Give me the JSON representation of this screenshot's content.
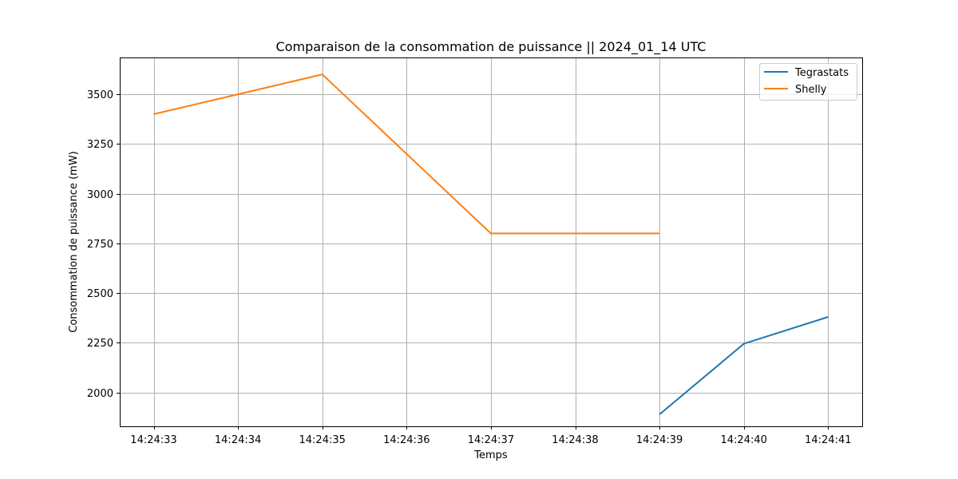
{
  "chart_data": {
    "type": "line",
    "title": "Comparaison de la consommation de puissance  ||  2024_01_14 UTC",
    "xlabel": "Temps",
    "ylabel": "Consommation de puissance (mW)",
    "categories": [
      "14:24:33",
      "14:24:34",
      "14:24:35",
      "14:24:36",
      "14:24:37",
      "14:24:38",
      "14:24:39",
      "14:24:40",
      "14:24:41"
    ],
    "yticks": [
      2000,
      2250,
      2500,
      2750,
      3000,
      3250,
      3500
    ],
    "ylim": [
      1830,
      3685
    ],
    "grid": true,
    "legend_position": "top-right",
    "series": [
      {
        "name": "Tegrastats",
        "color": "#1f77b4",
        "values": [
          null,
          null,
          null,
          null,
          null,
          null,
          1890,
          2245,
          2380
        ]
      },
      {
        "name": "Shelly",
        "color": "#ff7f0e",
        "values": [
          3400,
          3500,
          3600,
          3200,
          2800,
          2800,
          2800,
          null,
          null
        ]
      }
    ]
  }
}
